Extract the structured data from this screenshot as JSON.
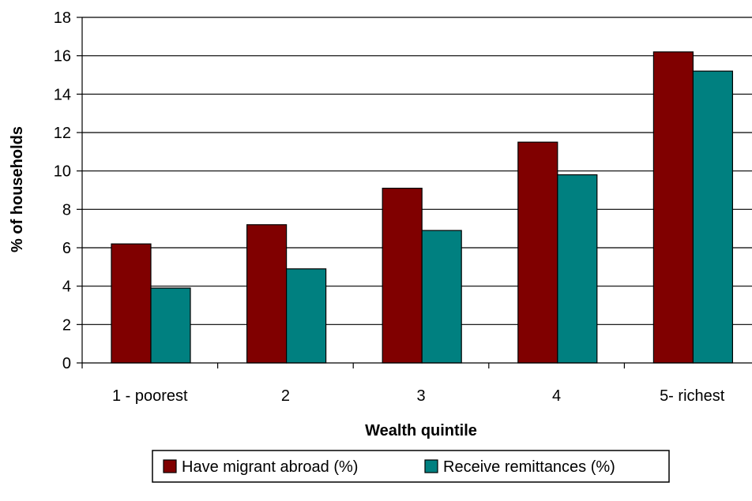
{
  "chart_data": {
    "type": "bar",
    "title": "",
    "xlabel": "Wealth quintile",
    "ylabel": "% of households",
    "categories": [
      "1 - poorest",
      "2",
      "3",
      "4",
      "5- richest"
    ],
    "series": [
      {
        "name": "Have migrant abroad (%)",
        "color": "#800000",
        "values": [
          6.2,
          7.2,
          9.1,
          11.5,
          16.2
        ]
      },
      {
        "name": "Receive remittances (%)",
        "color": "#008080",
        "values": [
          3.9,
          4.9,
          6.9,
          9.8,
          15.2
        ]
      }
    ],
    "ylim": [
      0,
      18
    ],
    "yticks": [
      0,
      2,
      4,
      6,
      8,
      10,
      12,
      14,
      16,
      18
    ],
    "grid": true,
    "legend": "bottom"
  }
}
